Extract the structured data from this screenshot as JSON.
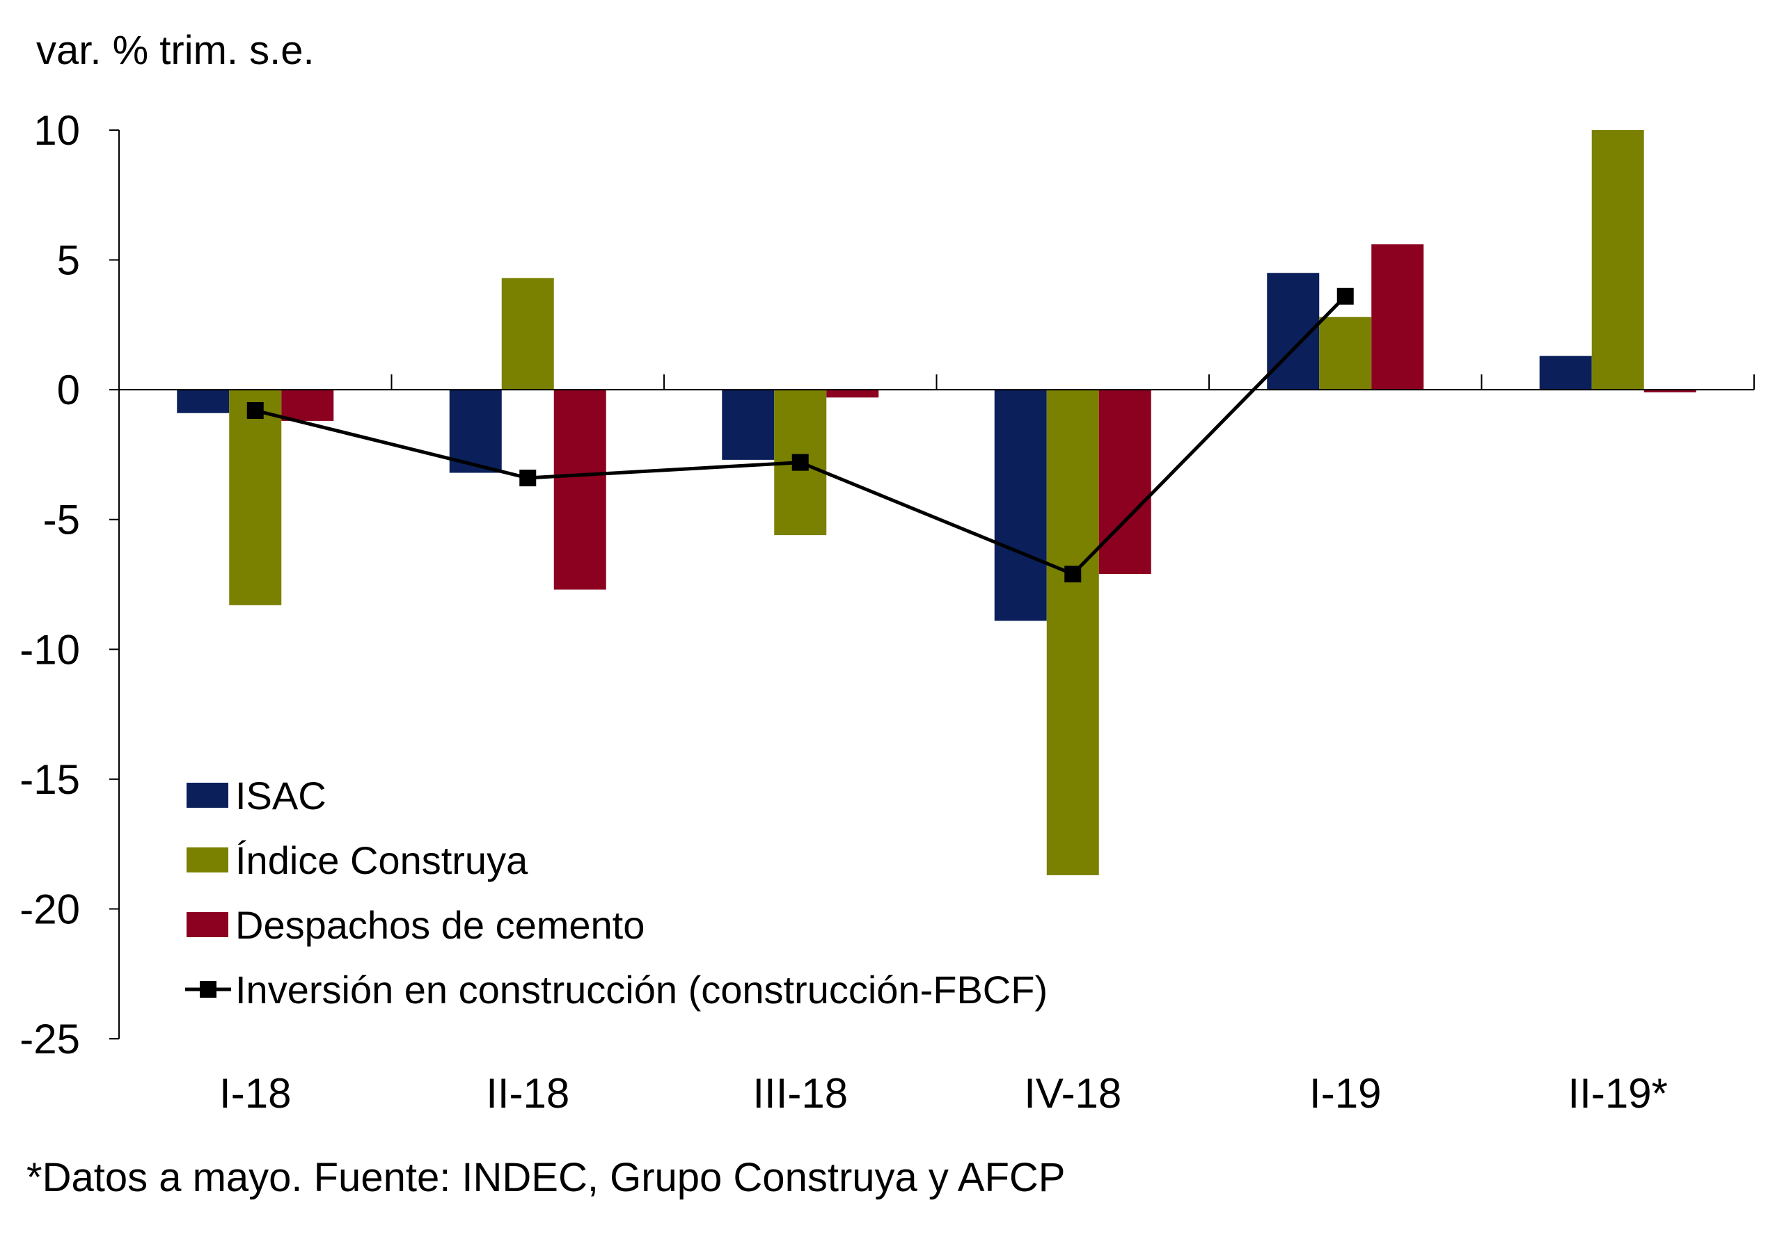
{
  "chart_data": {
    "type": "bar",
    "ylabel": "var. % trim. s.e.",
    "ylim": [
      -25,
      10
    ],
    "yticks": [
      10,
      5,
      0,
      -5,
      -10,
      -15,
      -20,
      -25
    ],
    "categories": [
      "I-18",
      "II-18",
      "III-18",
      "IV-18",
      "I-19",
      "II-19*"
    ],
    "grid": false,
    "legend_position": "bottom-left",
    "series": [
      {
        "name": "ISAC",
        "kind": "bar",
        "color": "#0b1f5a",
        "values": [
          -0.9,
          -3.2,
          -2.7,
          -8.9,
          4.5,
          1.3
        ]
      },
      {
        "name": "Índice Construya",
        "kind": "bar",
        "color": "#7a8000",
        "values": [
          -8.3,
          4.3,
          -5.6,
          -18.7,
          2.8,
          10.0
        ]
      },
      {
        "name": "Despachos de cemento",
        "kind": "bar",
        "color": "#8c0020",
        "values": [
          -1.2,
          -7.7,
          -0.3,
          -7.1,
          5.6,
          -0.1
        ]
      },
      {
        "name": "Inversión en construcción (construcción-FBCF)",
        "kind": "line",
        "color": "#000000",
        "marker": "square",
        "values": [
          -0.8,
          -3.4,
          -2.8,
          -7.1,
          3.6,
          null
        ]
      }
    ],
    "footnote": "*Datos a mayo. Fuente: INDEC, Grupo Construya y AFCP"
  }
}
